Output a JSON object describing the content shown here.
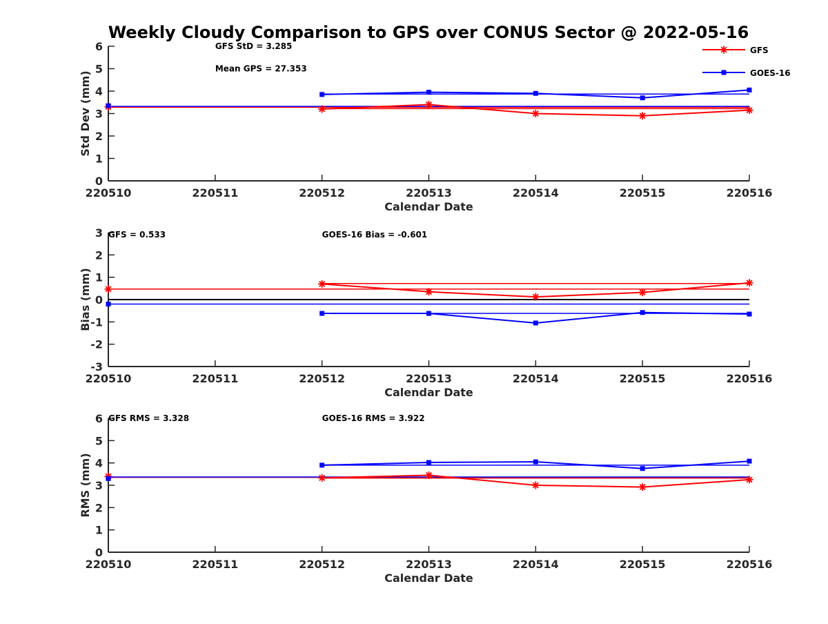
{
  "title": "Weekly Cloudy Comparison to GPS over CONUS Sector @ 2022-05-16",
  "colors": {
    "gfs": "#ff0000",
    "goes": "#0000ff",
    "zero": "#000000",
    "axis": "#262626"
  },
  "legend": {
    "placement": "top-right",
    "entries": [
      {
        "name": "GFS",
        "marker": "asterisk"
      },
      {
        "name": "GOES-16",
        "marker": "square"
      }
    ]
  },
  "chart_data": [
    {
      "type": "line",
      "ylabel": "Std Dev (mm)",
      "xlabel": "Calendar Date",
      "xlim": [
        220510,
        220516
      ],
      "ylim": [
        0,
        6
      ],
      "xticks": [
        "220510",
        "220511",
        "220512",
        "220513",
        "220514",
        "220515",
        "220516"
      ],
      "yticks": [
        "0",
        "1",
        "2",
        "3",
        "4",
        "5",
        "6"
      ],
      "annotations": [
        {
          "text": "GFS StD = 3.285",
          "x": 220511,
          "y": 6
        },
        {
          "text": "Mean GPS = 27.353",
          "x": 220511,
          "y": 5
        }
      ],
      "series": [
        {
          "name": "GFS",
          "color": "#ff0000",
          "marker": "asterisk",
          "x": [
            220512,
            220513,
            220514,
            220515,
            220516
          ],
          "values": [
            3.2,
            3.4,
            3.0,
            2.9,
            3.15
          ]
        },
        {
          "name": "GOES-16",
          "color": "#0000ff",
          "marker": "square",
          "x": [
            220512,
            220513,
            220514,
            220515,
            220516
          ],
          "values": [
            3.85,
            3.95,
            3.9,
            3.7,
            4.05
          ]
        }
      ],
      "reference_lines": [
        {
          "series": "GFS",
          "color": "#ff0000",
          "y": 3.28,
          "x": [
            220510,
            220516
          ]
        },
        {
          "series": "GFS",
          "color": "#ff0000",
          "y": 3.22,
          "x": [
            220512,
            220516
          ]
        },
        {
          "series": "GOES-16",
          "color": "#0000ff",
          "y": 3.32,
          "x": [
            220510,
            220516
          ]
        },
        {
          "series": "GOES-16",
          "color": "#0000ff",
          "y": 3.87,
          "x": [
            220512,
            220516
          ]
        }
      ],
      "start_points": [
        {
          "series": "GFS",
          "marker": "asterisk",
          "x": 220510,
          "y": 3.3
        },
        {
          "series": "GOES-16",
          "marker": "square",
          "x": 220510,
          "y": 3.35
        }
      ]
    },
    {
      "type": "line",
      "ylabel": "Bias (mm)",
      "xlabel": "Calendar Date",
      "xlim": [
        220510,
        220516
      ],
      "ylim": [
        -3,
        3
      ],
      "xticks": [
        "220510",
        "220511",
        "220512",
        "220513",
        "220514",
        "220515",
        "220516"
      ],
      "yticks": [
        "-3",
        "-2",
        "-1",
        "0",
        "1",
        "2",
        "3"
      ],
      "annotations": [
        {
          "text": "GFS = 0.533",
          "x": 220510,
          "y": 2.9
        },
        {
          "text": "GOES-16 Bias  = -0.601",
          "x": 220512,
          "y": 2.9
        }
      ],
      "zero_line": true,
      "series": [
        {
          "name": "GFS",
          "color": "#ff0000",
          "marker": "asterisk",
          "x": [
            220512,
            220513,
            220514,
            220515,
            220516
          ],
          "values": [
            0.7,
            0.35,
            0.12,
            0.32,
            0.75
          ]
        },
        {
          "name": "GOES-16",
          "color": "#0000ff",
          "marker": "square",
          "x": [
            220512,
            220513,
            220514,
            220515,
            220516
          ],
          "values": [
            -0.62,
            -0.62,
            -1.05,
            -0.58,
            -0.65
          ]
        }
      ],
      "reference_lines": [
        {
          "series": "GFS",
          "color": "#ff0000",
          "y": 0.47,
          "x": [
            220510,
            220516
          ]
        },
        {
          "series": "GFS",
          "color": "#ff0000",
          "y": 0.72,
          "x": [
            220512,
            220516
          ]
        },
        {
          "series": "GOES-16",
          "color": "#0000ff",
          "y": -0.2,
          "x": [
            220510,
            220516
          ]
        },
        {
          "series": "GOES-16",
          "color": "#0000ff",
          "y": -0.62,
          "x": [
            220512,
            220516
          ]
        }
      ],
      "start_points": [
        {
          "series": "GFS",
          "marker": "asterisk",
          "x": 220510,
          "y": 0.47
        },
        {
          "series": "GOES-16",
          "marker": "square",
          "x": 220510,
          "y": -0.2
        }
      ]
    },
    {
      "type": "line",
      "ylabel": "RMS (mm)",
      "xlabel": "Calendar Date",
      "xlim": [
        220510,
        220516
      ],
      "ylim": [
        0,
        6
      ],
      "xticks": [
        "220510",
        "220511",
        "220512",
        "220513",
        "220514",
        "220515",
        "220516"
      ],
      "yticks": [
        "0",
        "1",
        "2",
        "3",
        "4",
        "5",
        "6"
      ],
      "annotations": [
        {
          "text": "GFS RMS = 3.328",
          "x": 220510,
          "y": 6
        },
        {
          "text": "GOES-16 RMS = 3.922",
          "x": 220512,
          "y": 6
        }
      ],
      "series": [
        {
          "name": "GFS",
          "color": "#ff0000",
          "marker": "asterisk",
          "x": [
            220512,
            220513,
            220514,
            220515,
            220516
          ],
          "values": [
            3.33,
            3.45,
            3.0,
            2.92,
            3.25
          ]
        },
        {
          "name": "GOES-16",
          "color": "#0000ff",
          "marker": "square",
          "x": [
            220512,
            220513,
            220514,
            220515,
            220516
          ],
          "values": [
            3.9,
            4.02,
            4.05,
            3.75,
            4.08
          ]
        }
      ],
      "reference_lines": [
        {
          "series": "GFS",
          "color": "#ff0000",
          "y": 3.35,
          "x": [
            220510,
            220516
          ]
        },
        {
          "series": "GFS",
          "color": "#ff0000",
          "y": 3.32,
          "x": [
            220512,
            220516
          ]
        },
        {
          "series": "GOES-16",
          "color": "#0000ff",
          "y": 3.37,
          "x": [
            220510,
            220516
          ]
        },
        {
          "series": "GOES-16",
          "color": "#0000ff",
          "y": 3.9,
          "x": [
            220512,
            220516
          ]
        }
      ],
      "start_points": [
        {
          "series": "GFS",
          "marker": "asterisk",
          "x": 220510,
          "y": 3.4
        },
        {
          "series": "GOES-16",
          "marker": "square",
          "x": 220510,
          "y": 3.3
        }
      ]
    }
  ]
}
